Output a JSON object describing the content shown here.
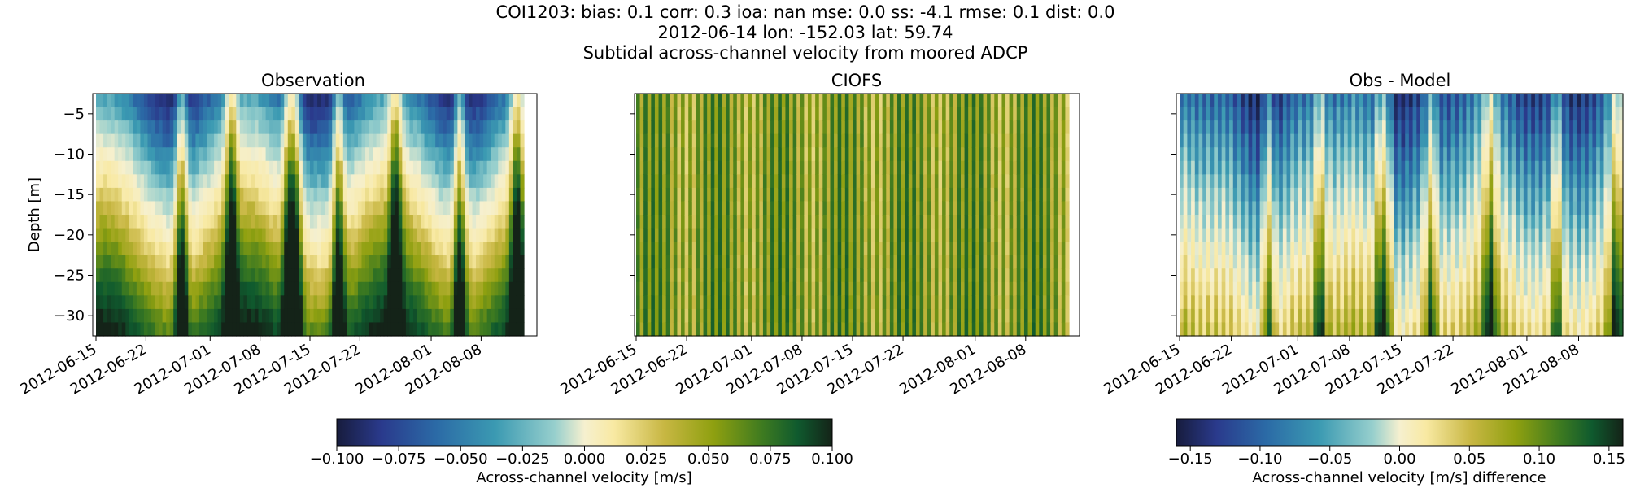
{
  "figure": {
    "title_lines": [
      "COI1203: bias: 0.1  corr: 0.3  ioa: nan  mse: 0.0  ss: -4.1  rmse: 0.1  dist: 0.0",
      "2012-06-14 lon: -152.03 lat: 59.74",
      "Subtidal across-channel velocity from moored ADCP"
    ]
  },
  "chart_data": [
    {
      "type": "heatmap",
      "title": "Observation",
      "ylabel": "Depth [m]",
      "xlabel": "",
      "x_start": "2012-06-15",
      "x_end": "2012-08-14",
      "ylim": [
        -32.5,
        -2.5
      ],
      "x_ticks": [
        "2012-06-15",
        "2012-06-22",
        "2012-07-01",
        "2012-07-08",
        "2012-07-15",
        "2012-07-22",
        "2012-08-01",
        "2012-08-08"
      ],
      "y_ticks": [
        -5,
        -10,
        -15,
        -20,
        -25,
        -30
      ],
      "colormap": "delta",
      "color_range": [
        -0.1,
        0.1
      ]
    },
    {
      "type": "heatmap",
      "title": "CIOFS",
      "x_start": "2012-06-15",
      "x_end": "2012-08-14",
      "ylim": [
        -32.5,
        -2.5
      ],
      "x_ticks": [
        "2012-06-15",
        "2012-06-22",
        "2012-07-01",
        "2012-07-08",
        "2012-07-15",
        "2012-07-22",
        "2012-08-01",
        "2012-08-08"
      ],
      "colormap": "delta",
      "color_range": [
        -0.1,
        0.1
      ]
    },
    {
      "type": "heatmap",
      "title": "Obs - Model",
      "x_start": "2012-06-15",
      "x_end": "2012-08-14",
      "ylim": [
        -32.5,
        -2.5
      ],
      "x_ticks": [
        "2012-06-15",
        "2012-06-22",
        "2012-07-01",
        "2012-07-08",
        "2012-07-15",
        "2012-07-22",
        "2012-08-01",
        "2012-08-08"
      ],
      "colormap": "delta",
      "color_range": [
        -0.16,
        0.16
      ]
    }
  ],
  "colorbars": [
    {
      "label": "Across-channel velocity [m/s]",
      "ticks": [
        "−0.100",
        "−0.075",
        "−0.050",
        "−0.025",
        "0.000",
        "0.025",
        "0.050",
        "0.075",
        "0.100"
      ]
    },
    {
      "label": "Across-channel velocity [m/s] difference",
      "ticks": [
        "−0.15",
        "−0.10",
        "−0.05",
        "0.00",
        "0.05",
        "0.10",
        "0.15"
      ]
    }
  ],
  "colors": {
    "cmap_stops": [
      "#171c3d",
      "#2a3a8c",
      "#2b6aa6",
      "#3b9ab2",
      "#97cfcd",
      "#f6f0cf",
      "#f8e9a2",
      "#c8b743",
      "#8fa010",
      "#3d7a20",
      "#0f5a2e",
      "#142318"
    ]
  }
}
